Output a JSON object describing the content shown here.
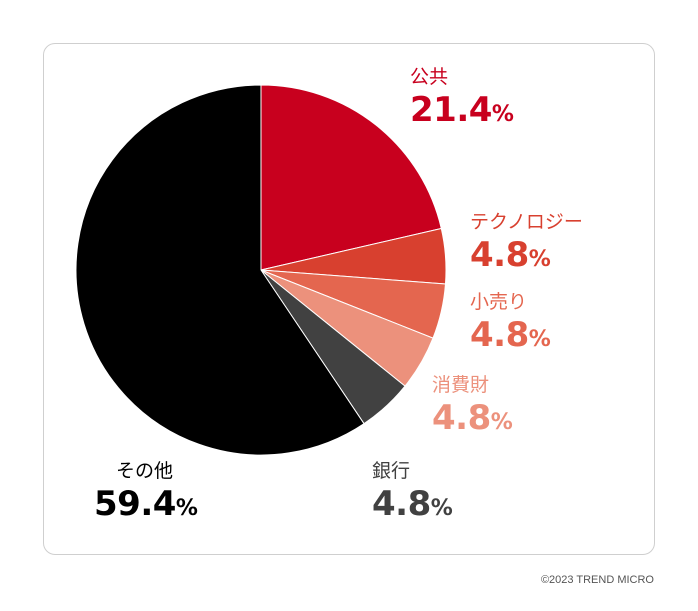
{
  "chart_data": {
    "type": "pie",
    "slices": [
      {
        "label": "公共",
        "value": 21.4,
        "display": "21.4",
        "unit": "%",
        "color": "#c8001e",
        "label_color": "#c8001e"
      },
      {
        "label": "テクノロジー",
        "value": 4.8,
        "display": "4.8",
        "unit": "%",
        "color": "#d8402f",
        "label_color": "#d8402f"
      },
      {
        "label": "小売り",
        "value": 4.8,
        "display": "4.8",
        "unit": "%",
        "color": "#e4664f",
        "label_color": "#e4664f"
      },
      {
        "label": "消費財",
        "value": 4.8,
        "display": "4.8",
        "unit": "%",
        "color": "#ec917c",
        "label_color": "#ec917c"
      },
      {
        "label": "銀行",
        "value": 4.8,
        "display": "4.8",
        "unit": "%",
        "color": "#414141",
        "label_color": "#414141"
      },
      {
        "label": "その他",
        "value": 59.4,
        "display": "59.4",
        "unit": "%",
        "color": "#000000",
        "label_color": "#000000"
      }
    ],
    "start_angle": "12 o'clock",
    "direction": "clockwise"
  },
  "footer": {
    "copyright": "©2023 TREND MICRO"
  }
}
